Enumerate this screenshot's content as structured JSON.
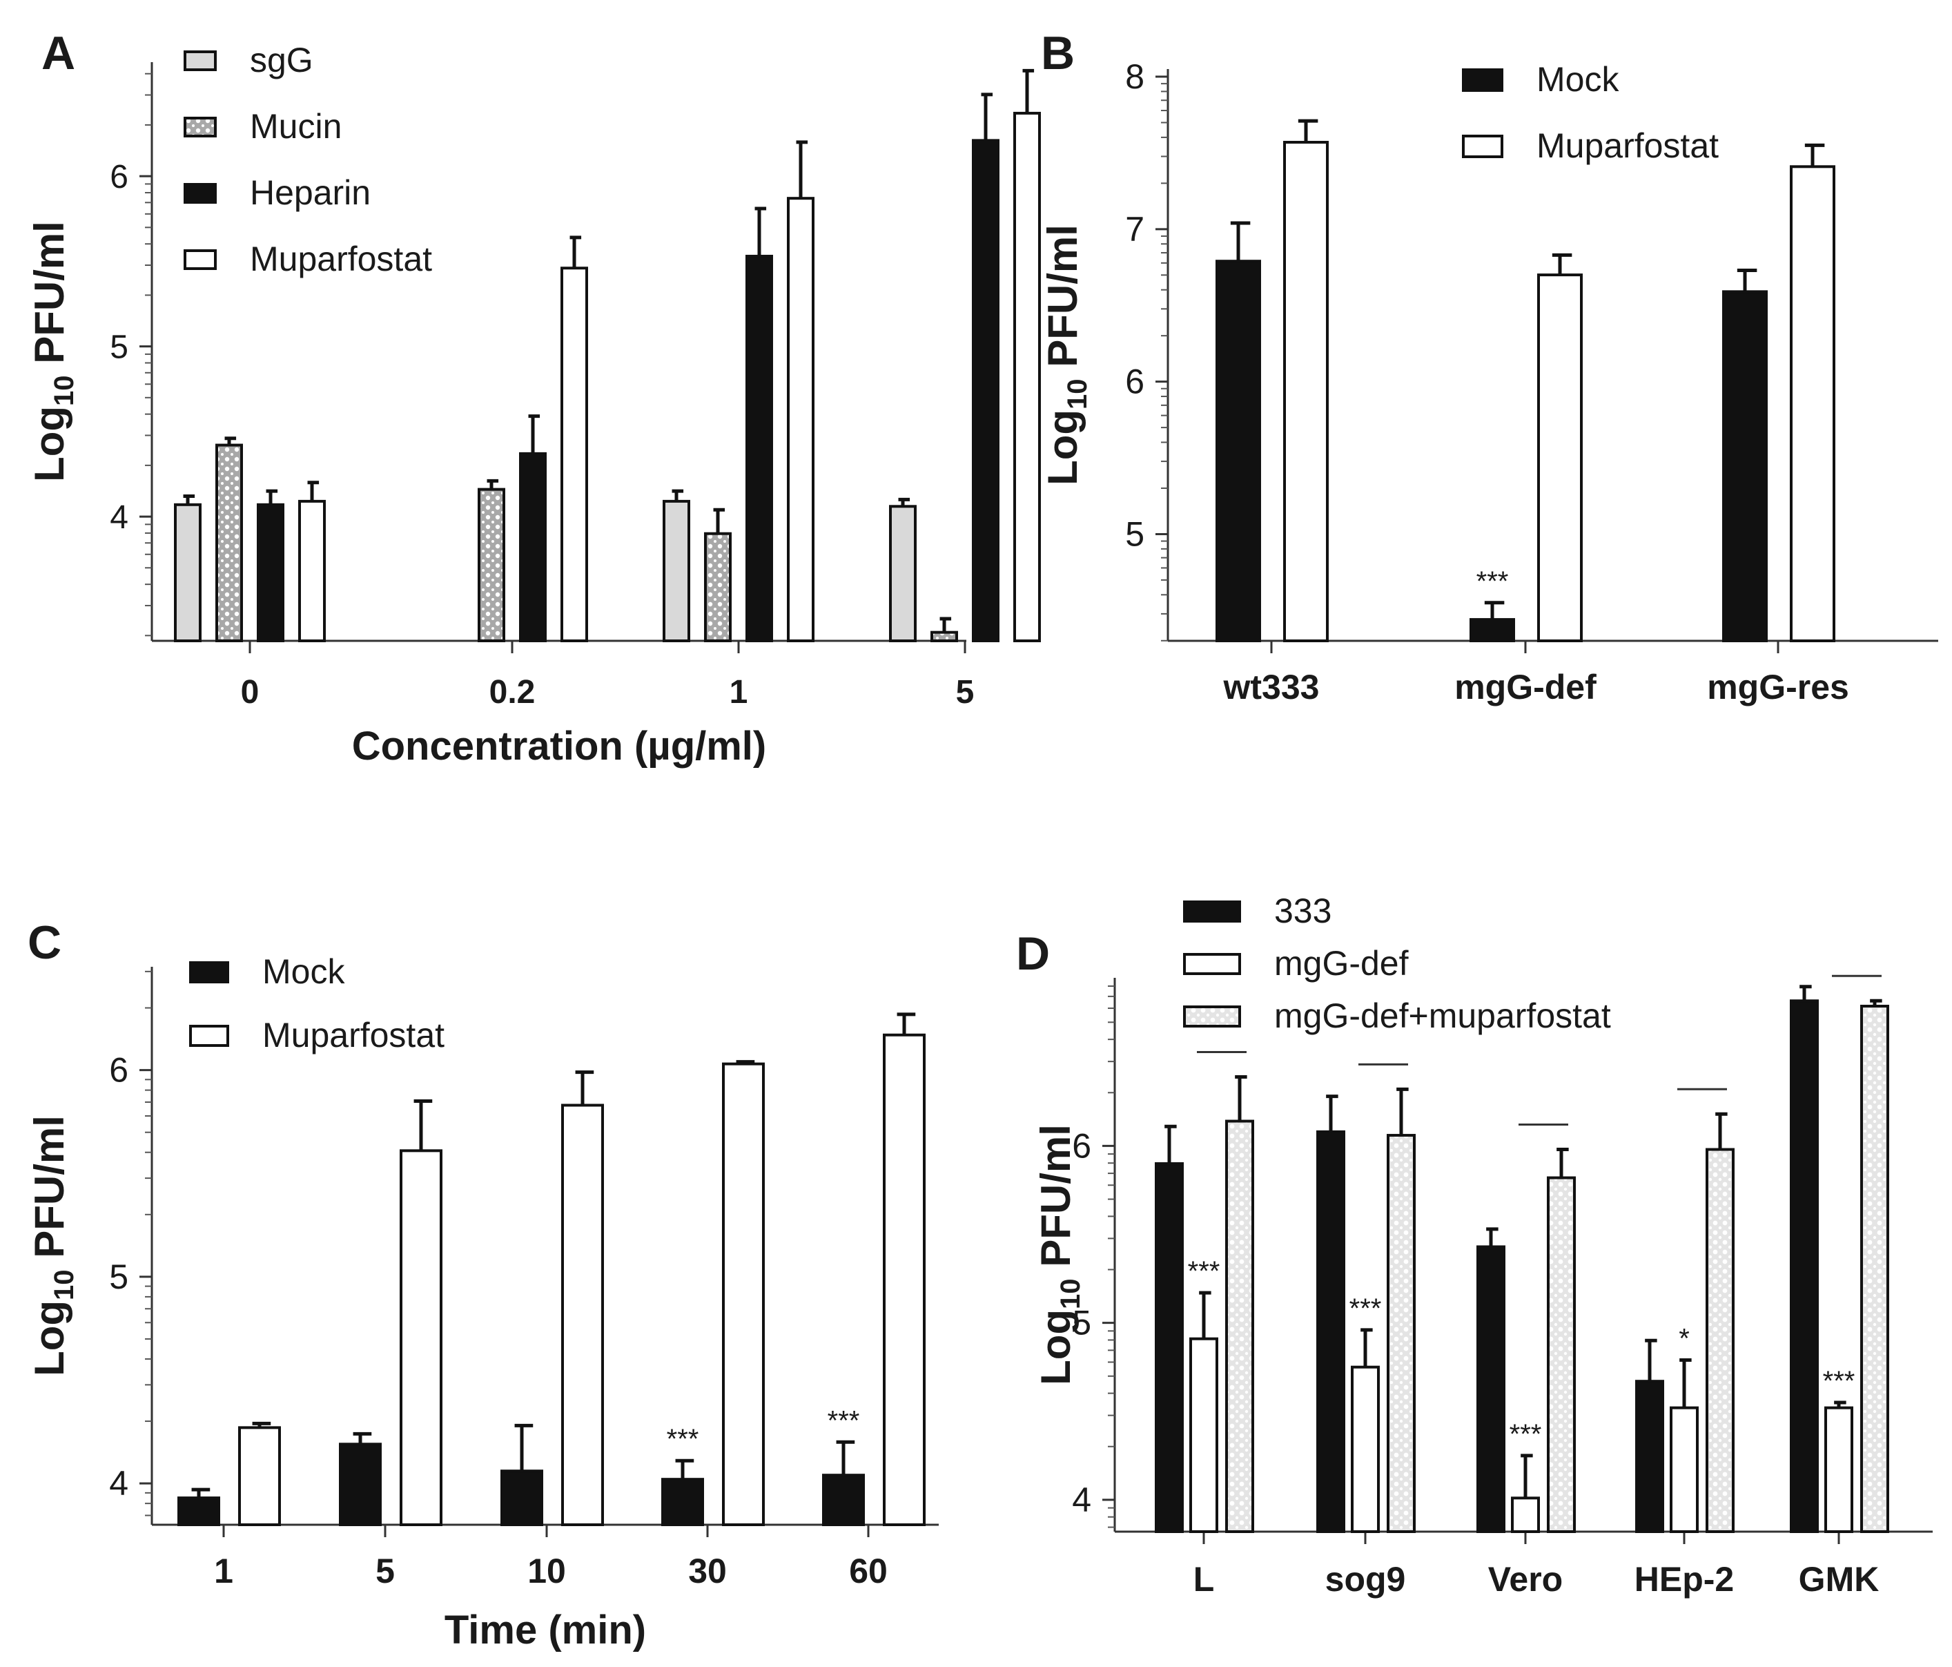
{
  "colors": {
    "sgG": "#d9d9d9",
    "mucin": "#a8a8a8",
    "black": "#111111",
    "white": "#ffffff",
    "pattern_light": "#ffffff"
  },
  "chart_data": [
    {
      "panel": "A",
      "type": "bar",
      "xlabel": "Concentration (µg/ml)",
      "ylabel_main": "Log",
      "ylabel_sub": "10",
      "ylabel_rest": " PFU/ml",
      "ylim": [
        3.27,
        6.67
      ],
      "yticks": [
        "4",
        "5",
        "6"
      ],
      "categories": [
        "0",
        "0.2",
        "1",
        "5"
      ],
      "series": [
        {
          "name": "sgG",
          "fill": "sgG",
          "values": [
            4.07,
            null,
            4.09,
            4.06
          ],
          "errors": [
            0.05,
            null,
            0.06,
            0.04
          ]
        },
        {
          "name": "Mucin",
          "fill": "mucin-pattern",
          "values": [
            4.42,
            4.16,
            3.9,
            3.32
          ],
          "errors": [
            0.04,
            0.05,
            0.14,
            0.08
          ]
        },
        {
          "name": "Heparin",
          "fill": "black",
          "values": [
            4.07,
            4.37,
            5.53,
            6.21
          ],
          "errors": [
            0.08,
            0.22,
            0.28,
            0.27
          ]
        },
        {
          "name": "Muparfostat",
          "fill": "white",
          "values": [
            4.09,
            5.46,
            5.87,
            6.37
          ],
          "errors": [
            0.11,
            0.18,
            0.33,
            0.25
          ]
        }
      ],
      "annotations": []
    },
    {
      "panel": "B",
      "type": "bar",
      "xlabel": "",
      "ylabel_main": "Log",
      "ylabel_sub": "10",
      "ylabel_rest": " PFU/ml",
      "ylim": [
        4.3,
        8.05
      ],
      "yticks": [
        "5",
        "6",
        "7",
        "8"
      ],
      "categories": [
        "wt333",
        "mgG-def",
        "mgG-res"
      ],
      "series": [
        {
          "name": "Mock",
          "fill": "black",
          "values": [
            6.79,
            4.44,
            6.59
          ],
          "errors": [
            0.25,
            0.11,
            0.14
          ]
        },
        {
          "name": "Muparfostat",
          "fill": "white",
          "values": [
            7.57,
            6.7,
            7.41
          ],
          "errors": [
            0.14,
            0.13,
            0.14
          ]
        }
      ],
      "annotations": [
        {
          "series": 0,
          "category": 1,
          "text": "***"
        }
      ]
    },
    {
      "panel": "C",
      "type": "bar",
      "xlabel": "Time (min)",
      "ylabel_main": "Log",
      "ylabel_sub": "10",
      "ylabel_rest": " PFU/ml",
      "ylim": [
        3.8,
        6.5
      ],
      "yticks": [
        "4",
        "5",
        "6"
      ],
      "categories": [
        "1",
        "5",
        "10",
        "30",
        "60"
      ],
      "series": [
        {
          "name": "Mock",
          "fill": "black",
          "values": [
            3.93,
            4.19,
            4.06,
            4.02,
            4.04
          ],
          "errors": [
            0.04,
            0.05,
            0.22,
            0.09,
            0.16
          ]
        },
        {
          "name": "Muparfostat",
          "fill": "white",
          "values": [
            4.27,
            5.61,
            5.83,
            6.03,
            6.17
          ],
          "errors": [
            0.02,
            0.24,
            0.16,
            0.01,
            0.1
          ]
        }
      ],
      "annotations": [
        {
          "series": 0,
          "category": 3,
          "text": "***"
        },
        {
          "series": 0,
          "category": 4,
          "text": "***"
        }
      ]
    },
    {
      "panel": "D",
      "type": "bar",
      "xlabel": "",
      "ylabel_main": "Log",
      "ylabel_sub": "10",
      "ylabel_rest": " PFU/ml",
      "ylim": [
        3.82,
        6.95
      ],
      "yticks": [
        "4",
        "5",
        "6"
      ],
      "categories": [
        "L",
        "sog9",
        "Vero",
        "HEp-2",
        "GMK"
      ],
      "series": [
        {
          "name": "333",
          "fill": "black",
          "values": [
            5.9,
            6.08,
            5.43,
            4.67,
            6.82
          ],
          "errors": [
            0.21,
            0.2,
            0.1,
            0.23,
            0.08
          ]
        },
        {
          "name": "mgG-def",
          "fill": "white",
          "values": [
            4.91,
            4.75,
            4.01,
            4.52,
            4.52
          ],
          "errors": [
            0.26,
            0.21,
            0.24,
            0.27,
            0.03
          ]
        },
        {
          "name": "mgG-def+muparfostat",
          "fill": "light-pattern",
          "values": [
            6.14,
            6.06,
            5.82,
            5.98,
            6.79
          ],
          "errors": [
            0.25,
            0.26,
            0.16,
            0.2,
            0.03
          ]
        }
      ],
      "annotations": [
        {
          "series": 1,
          "category": 0,
          "text": "***"
        },
        {
          "series": 1,
          "category": 1,
          "text": "***"
        },
        {
          "series": 1,
          "category": 2,
          "text": "***"
        },
        {
          "series": 1,
          "category": 3,
          "text": "*"
        },
        {
          "series": 1,
          "category": 4,
          "text": "***"
        }
      ],
      "brackets": [
        true,
        true,
        true,
        true,
        true
      ]
    }
  ]
}
